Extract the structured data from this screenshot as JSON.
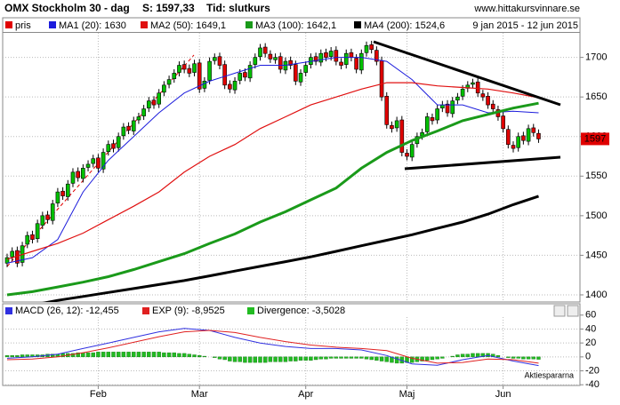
{
  "chart_data": [
    {
      "type": "candlestick",
      "title": "OMX Stockholm 30 - dag",
      "subtitle": "S: 1597,33",
      "note": "Tid: slutkurs",
      "source": "www.hittakursvinnare.se",
      "date_range": "9 jan 2015 - 12 jun 2015",
      "categories": [
        null,
        null,
        null,
        null,
        null,
        null,
        null,
        null,
        null,
        null,
        null,
        null,
        null,
        null,
        null,
        null,
        null,
        null,
        "Feb",
        null,
        null,
        null,
        null,
        null,
        null,
        null,
        null,
        null,
        null,
        null,
        null,
        null,
        null,
        null,
        null,
        null,
        null,
        null,
        "Mar",
        null,
        null,
        null,
        null,
        null,
        null,
        null,
        null,
        null,
        null,
        null,
        null,
        null,
        null,
        null,
        null,
        null,
        null,
        null,
        null,
        "Apr",
        null,
        null,
        null,
        null,
        null,
        null,
        null,
        null,
        null,
        null,
        null,
        null,
        null,
        null,
        null,
        null,
        null,
        null,
        null,
        "Maj",
        null,
        null,
        null,
        null,
        null,
        null,
        null,
        null,
        null,
        null,
        null,
        null,
        null,
        null,
        null,
        null,
        null,
        null,
        "Jun",
        null,
        null,
        null,
        null,
        null,
        null,
        null
      ],
      "price": {
        "name": "pris",
        "color": "#e00000",
        "up_color": "#00c000",
        "down_color": "#e00000",
        "open": [
          1440,
          1448,
          1456,
          1441,
          1464,
          1476,
          1471,
          1488,
          1501,
          1494,
          1516,
          1531,
          1524,
          1541,
          1556,
          1547,
          1561,
          1566,
          1573,
          1559,
          1581,
          1591,
          1586,
          1601,
          1613,
          1607,
          1621,
          1626,
          1636,
          1646,
          1641,
          1656,
          1666,
          1673,
          1681,
          1691,
          1686,
          1681,
          1693,
          1661,
          1671,
          1696,
          1701,
          1691,
          1666,
          1659,
          1671,
          1681,
          1674,
          1691,
          1701,
          1713,
          1704,
          1697,
          1701,
          1684,
          1696,
          1691,
          1669,
          1681,
          1691,
          1701,
          1694,
          1706,
          1701,
          1709,
          1694,
          1691,
          1706,
          1699,
          1684,
          1706,
          1716,
          1709,
          1696,
          1651,
          1614,
          1611,
          1621,
          1579,
          1574,
          1591,
          1601,
          1606,
          1624,
          1621,
          1636,
          1641,
          1629,
          1646,
          1651,
          1661,
          1666,
          1669,
          1654,
          1651,
          1641,
          1634,
          1626,
          1609,
          1589,
          1586,
          1601,
          1594,
          1611,
          1604
        ],
        "high": [
          1452,
          1460,
          1461,
          1467,
          1480,
          1481,
          1495,
          1505,
          1506,
          1520,
          1535,
          1536,
          1545,
          1560,
          1561,
          1565,
          1570,
          1577,
          1578,
          1585,
          1595,
          1596,
          1605,
          1617,
          1618,
          1625,
          1630,
          1640,
          1650,
          1651,
          1660,
          1670,
          1677,
          1685,
          1695,
          1696,
          1691,
          1697,
          1698,
          1675,
          1700,
          1705,
          1706,
          1696,
          1671,
          1675,
          1685,
          1686,
          1695,
          1705,
          1717,
          1718,
          1709,
          1705,
          1706,
          1700,
          1701,
          1696,
          1685,
          1695,
          1705,
          1706,
          1710,
          1711,
          1713,
          1714,
          1699,
          1710,
          1711,
          1704,
          1710,
          1720,
          1721,
          1714,
          1701,
          1656,
          1619,
          1625,
          1626,
          1584,
          1595,
          1605,
          1610,
          1630,
          1629,
          1640,
          1645,
          1646,
          1650,
          1655,
          1665,
          1670,
          1673,
          1674,
          1659,
          1656,
          1646,
          1639,
          1631,
          1614,
          1594,
          1605,
          1606,
          1615,
          1616,
          1609
        ],
        "low": [
          1435,
          1443,
          1435,
          1436,
          1459,
          1465,
          1466,
          1483,
          1490,
          1489,
          1511,
          1520,
          1519,
          1536,
          1543,
          1542,
          1556,
          1561,
          1555,
          1554,
          1576,
          1580,
          1581,
          1596,
          1603,
          1602,
          1616,
          1621,
          1631,
          1635,
          1636,
          1651,
          1661,
          1668,
          1676,
          1680,
          1675,
          1676,
          1655,
          1656,
          1666,
          1691,
          1685,
          1660,
          1655,
          1654,
          1666,
          1670,
          1669,
          1686,
          1696,
          1700,
          1693,
          1692,
          1680,
          1679,
          1685,
          1665,
          1664,
          1676,
          1686,
          1690,
          1689,
          1695,
          1696,
          1690,
          1685,
          1686,
          1695,
          1680,
          1679,
          1701,
          1705,
          1690,
          1645,
          1610,
          1605,
          1606,
          1575,
          1570,
          1569,
          1586,
          1596,
          1601,
          1615,
          1616,
          1631,
          1625,
          1624,
          1641,
          1646,
          1656,
          1661,
          1650,
          1645,
          1635,
          1630,
          1620,
          1605,
          1585,
          1580,
          1581,
          1590,
          1589,
          1600,
          1592
        ],
        "close": [
          1447,
          1455,
          1440,
          1462,
          1475,
          1470,
          1490,
          1500,
          1495,
          1515,
          1530,
          1525,
          1540,
          1555,
          1548,
          1560,
          1565,
          1572,
          1560,
          1580,
          1590,
          1585,
          1600,
          1612,
          1608,
          1620,
          1625,
          1635,
          1645,
          1640,
          1655,
          1665,
          1672,
          1680,
          1690,
          1685,
          1680,
          1692,
          1660,
          1670,
          1695,
          1700,
          1690,
          1665,
          1660,
          1670,
          1680,
          1675,
          1690,
          1700,
          1712,
          1705,
          1698,
          1700,
          1685,
          1695,
          1690,
          1670,
          1680,
          1690,
          1700,
          1695,
          1705,
          1700,
          1708,
          1695,
          1690,
          1705,
          1700,
          1685,
          1705,
          1715,
          1710,
          1695,
          1650,
          1615,
          1610,
          1620,
          1580,
          1575,
          1590,
          1600,
          1605,
          1625,
          1620,
          1635,
          1640,
          1630,
          1645,
          1650,
          1660,
          1665,
          1668,
          1655,
          1650,
          1640,
          1635,
          1625,
          1610,
          1590,
          1585,
          1600,
          1595,
          1610,
          1605,
          1597
        ]
      },
      "series": [
        {
          "name": "MA1 (20): 1630",
          "color": "#1c1cdc",
          "x": [
            0,
            5,
            10,
            15,
            20,
            25,
            30,
            35,
            40,
            45,
            50,
            55,
            60,
            65,
            70,
            75,
            80,
            85,
            90,
            95,
            100,
            105
          ],
          "values": [
            1440,
            1447,
            1470,
            1530,
            1570,
            1600,
            1630,
            1655,
            1670,
            1680,
            1690,
            1690,
            1695,
            1700,
            1700,
            1695,
            1672,
            1640,
            1640,
            1630,
            1632,
            1630
          ]
        },
        {
          "name": "MA2 (50): 1649,1",
          "color": "#e01010",
          "x": [
            0,
            5,
            10,
            15,
            20,
            25,
            30,
            35,
            40,
            45,
            50,
            55,
            60,
            65,
            70,
            75,
            80,
            85,
            90,
            95,
            100,
            105
          ],
          "values": [
            1445,
            1455,
            1465,
            1478,
            1495,
            1512,
            1530,
            1555,
            1575,
            1590,
            1610,
            1625,
            1640,
            1650,
            1660,
            1668,
            1668,
            1664,
            1662,
            1660,
            1655,
            1649.1
          ]
        },
        {
          "name": "MA3 (100): 1642,1",
          "color": "#1a9a1a",
          "x": [
            0,
            5,
            10,
            15,
            20,
            25,
            30,
            35,
            40,
            45,
            50,
            55,
            60,
            65,
            70,
            75,
            80,
            85,
            90,
            95,
            100,
            105
          ],
          "values": [
            1400,
            1404,
            1410,
            1416,
            1423,
            1432,
            1442,
            1452,
            1465,
            1477,
            1492,
            1505,
            1520,
            1535,
            1560,
            1580,
            1595,
            1607,
            1620,
            1628,
            1636,
            1642.1
          ]
        },
        {
          "name": "MA4 (200): 1524,6",
          "color": "#000000",
          "x": [
            0,
            5,
            10,
            15,
            20,
            25,
            30,
            35,
            40,
            45,
            50,
            55,
            60,
            65,
            70,
            75,
            80,
            85,
            90,
            95,
            100,
            105
          ],
          "values": [
            1380,
            1387,
            1393,
            1398,
            1403,
            1408,
            1413,
            1418,
            1424,
            1430,
            1436,
            1442,
            1448,
            1455,
            1462,
            1469,
            1476,
            1484,
            1492,
            1502,
            1514,
            1524.6
          ]
        }
      ],
      "ylim": [
        1391,
        1731
      ],
      "yticks": [
        1400,
        1450,
        1500,
        1550,
        1600,
        1650,
        1700
      ],
      "grid": true
    },
    {
      "type": "line",
      "credit": "Aktiespararna",
      "series": [
        {
          "name": "MACD (26, 12): -12,455",
          "color": "#3030e0",
          "x": [
            0,
            5,
            10,
            15,
            20,
            25,
            30,
            35,
            40,
            45,
            50,
            55,
            60,
            65,
            70,
            75,
            80,
            85,
            90,
            95,
            100,
            105
          ],
          "values": [
            -2,
            0,
            4,
            12,
            20,
            28,
            36,
            41,
            38,
            28,
            20,
            15,
            12,
            12,
            10,
            2,
            -10,
            -12,
            -4,
            2,
            -6,
            -12.455
          ]
        },
        {
          "name": "EXP (9): -8,9525",
          "color": "#e02020",
          "x": [
            0,
            5,
            10,
            15,
            20,
            25,
            30,
            35,
            40,
            45,
            50,
            55,
            60,
            65,
            70,
            75,
            80,
            85,
            90,
            95,
            100,
            105
          ],
          "values": [
            -4,
            -3,
            0,
            6,
            13,
            21,
            29,
            36,
            38,
            35,
            28,
            22,
            17,
            14,
            12,
            9,
            -2,
            -9,
            -8,
            -3,
            -4,
            -8.9525
          ]
        }
      ],
      "bars": {
        "name": "Divergence: -3,5028",
        "color": "#22bb22",
        "values": [
          2,
          2,
          2,
          3,
          3,
          3,
          3,
          3,
          4,
          4,
          4,
          5,
          5,
          5,
          6,
          6,
          6,
          6,
          7,
          7,
          7,
          7,
          7,
          7,
          7,
          7,
          7,
          7,
          7,
          7,
          7,
          6,
          6,
          6,
          5,
          5,
          4,
          3,
          2,
          1,
          0,
          -1,
          -3,
          -4,
          -6,
          -7,
          -7,
          -8,
          -8,
          -8,
          -8,
          -8,
          -7,
          -7,
          -7,
          -7,
          -6,
          -6,
          -5,
          -5,
          -5,
          -4,
          -3,
          -3,
          -2,
          -2,
          -2,
          -2,
          -2,
          -2,
          -2,
          -3,
          -4,
          -5,
          -6,
          -7,
          -8,
          -9,
          -9,
          -8,
          -8,
          -7,
          -6,
          -5,
          -4,
          -3,
          -2,
          0,
          1,
          3,
          4,
          4,
          5,
          5,
          5,
          5,
          4,
          2,
          0,
          -1,
          -2,
          -2,
          -3,
          -3,
          -3,
          -3.5028
        ]
      },
      "ylim": [
        -41,
        61
      ],
      "yticks": [
        -40,
        -20,
        0,
        20,
        40,
        60
      ],
      "grid": true
    }
  ]
}
